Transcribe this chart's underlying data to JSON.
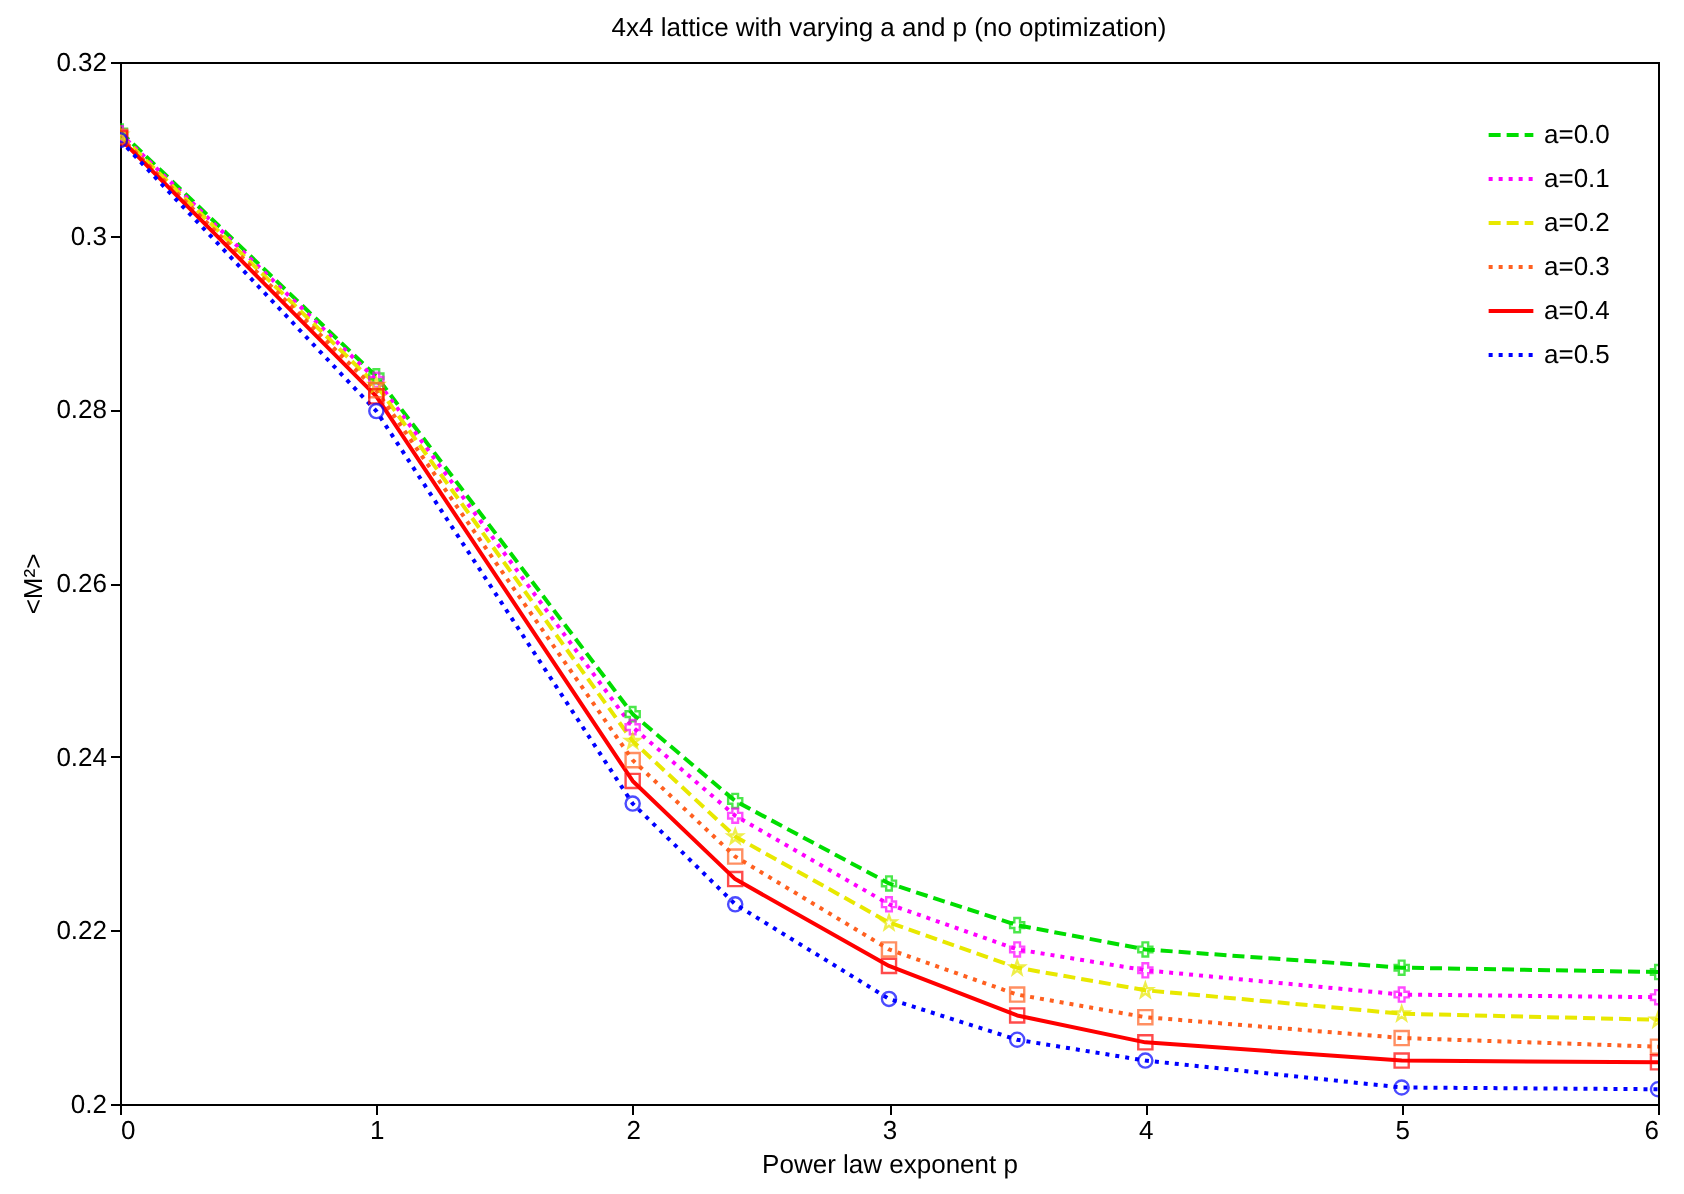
{
  "chart_data": {
    "type": "line",
    "title": "4x4 lattice with varying a and p (no optimization)",
    "xlabel": "Power law exponent p",
    "ylabel": "<M²>",
    "x": [
      0,
      1,
      2,
      2.4,
      3,
      3.5,
      4,
      5,
      6
    ],
    "series": [
      {
        "name": "a=0.0",
        "color": "#00dd00",
        "line_style": "dashed",
        "marker": "cross",
        "values": [
          0.312,
          0.2838,
          0.2449,
          0.2349,
          0.2254,
          0.2206,
          0.2178,
          0.2157,
          0.2152
        ]
      },
      {
        "name": "a=0.1",
        "color": "#ff00ff",
        "line_style": "dotted",
        "marker": "cross",
        "values": [
          0.3118,
          0.2834,
          0.2434,
          0.2332,
          0.223,
          0.2178,
          0.2154,
          0.2126,
          0.2123
        ]
      },
      {
        "name": "a=0.2",
        "color": "#e8e800",
        "line_style": "dashed",
        "marker": "star",
        "values": [
          0.3116,
          0.2828,
          0.2418,
          0.2308,
          0.2209,
          0.2157,
          0.2131,
          0.2104,
          0.2097
        ]
      },
      {
        "name": "a=0.3",
        "color": "#ff6020",
        "line_style": "dotted",
        "marker": "square",
        "values": [
          0.3114,
          0.2822,
          0.2396,
          0.2285,
          0.2178,
          0.2126,
          0.21,
          0.2076,
          0.2066
        ]
      },
      {
        "name": "a=0.4",
        "color": "#ff0000",
        "line_style": "solid",
        "marker": "square",
        "values": [
          0.3112,
          0.2815,
          0.2372,
          0.2259,
          0.2159,
          0.2102,
          0.2071,
          0.205,
          0.2048
        ]
      },
      {
        "name": "a=0.5",
        "color": "#0000ff",
        "line_style": "dotted",
        "marker": "circle",
        "values": [
          0.311,
          0.2798,
          0.2346,
          0.223,
          0.2121,
          0.2074,
          0.205,
          0.2019,
          0.2017
        ]
      }
    ],
    "xlim": [
      0,
      6
    ],
    "xticks": [
      0,
      1,
      2,
      3,
      4,
      5,
      6
    ],
    "ylim": [
      0.2,
      0.32
    ],
    "yticks": [
      0.2,
      0.22,
      0.24,
      0.26,
      0.28,
      0.3,
      0.32
    ],
    "grid": false,
    "legend": "top right"
  }
}
